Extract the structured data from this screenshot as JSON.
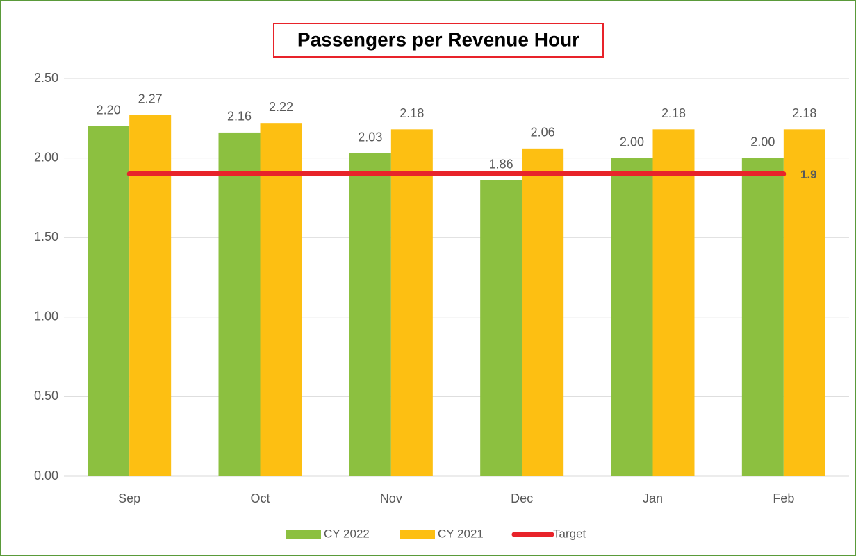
{
  "chart_data": {
    "type": "bar",
    "title": "Passengers per Revenue Hour",
    "categories": [
      "Sep",
      "Oct",
      "Nov",
      "Dec",
      "Jan",
      "Feb"
    ],
    "series": [
      {
        "name": "CY 2022",
        "color": "#8cc040",
        "values": [
          2.2,
          2.16,
          2.03,
          1.86,
          2.0,
          2.0
        ],
        "value_labels": [
          "2.20",
          "2.16",
          "2.03",
          "1.86",
          "2.00",
          "2.00"
        ]
      },
      {
        "name": "CY 2021",
        "color": "#fdbf12",
        "values": [
          2.27,
          2.22,
          2.18,
          2.06,
          2.18,
          2.18
        ],
        "value_labels": [
          "2.27",
          "2.22",
          "2.18",
          "2.06",
          "2.18",
          "2.18"
        ]
      },
      {
        "name": "Target",
        "type": "line",
        "color": "#e8232a",
        "values": [
          1.9,
          1.9,
          1.9,
          1.9,
          1.9,
          1.9
        ]
      }
    ],
    "ylim": [
      0,
      2.5
    ],
    "yticks": [
      {
        "value": 0,
        "label": "0.00"
      },
      {
        "value": 0.5,
        "label": "0.50"
      },
      {
        "value": 1,
        "label": "1.00"
      },
      {
        "value": 1.5,
        "label": "1.50"
      },
      {
        "value": 2,
        "label": "2.00"
      },
      {
        "value": 2.5,
        "label": "2.50"
      }
    ],
    "grid": true,
    "legend": "bottom"
  }
}
